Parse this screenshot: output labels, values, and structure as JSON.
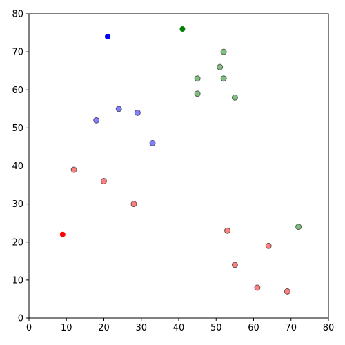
{
  "chart_data": {
    "type": "scatter",
    "title": "",
    "xlabel": "",
    "ylabel": "",
    "xlim": [
      0,
      80
    ],
    "ylim": [
      0,
      80
    ],
    "xticks": [
      0,
      10,
      20,
      30,
      40,
      50,
      60,
      70,
      80
    ],
    "yticks": [
      0,
      10,
      20,
      30,
      40,
      50,
      60,
      70,
      80
    ],
    "grid": false,
    "legend": "none",
    "series": [
      {
        "color": "#0000ff",
        "fill_opacity": 0.5,
        "points": [
          [
            18,
            52
          ],
          [
            24,
            55
          ],
          [
            29,
            54
          ],
          [
            33,
            46
          ]
        ]
      },
      {
        "color": "#008000",
        "fill_opacity": 0.5,
        "points": [
          [
            45,
            63
          ],
          [
            45,
            59
          ],
          [
            51,
            66
          ],
          [
            52,
            70
          ],
          [
            52,
            63
          ],
          [
            55,
            58
          ],
          [
            72,
            24
          ]
        ]
      },
      {
        "color": "#ff0000",
        "fill_opacity": 0.5,
        "points": [
          [
            12,
            39
          ],
          [
            20,
            36
          ],
          [
            28,
            30
          ],
          [
            53,
            23
          ],
          [
            64,
            19
          ],
          [
            55,
            14
          ],
          [
            61,
            8
          ],
          [
            69,
            7
          ]
        ]
      }
    ],
    "highlight_points": [
      {
        "color": "#0000ff",
        "x": 21,
        "y": 74
      },
      {
        "color": "#008000",
        "x": 41,
        "y": 76
      },
      {
        "color": "#ff0000",
        "x": 9,
        "y": 22
      }
    ]
  }
}
